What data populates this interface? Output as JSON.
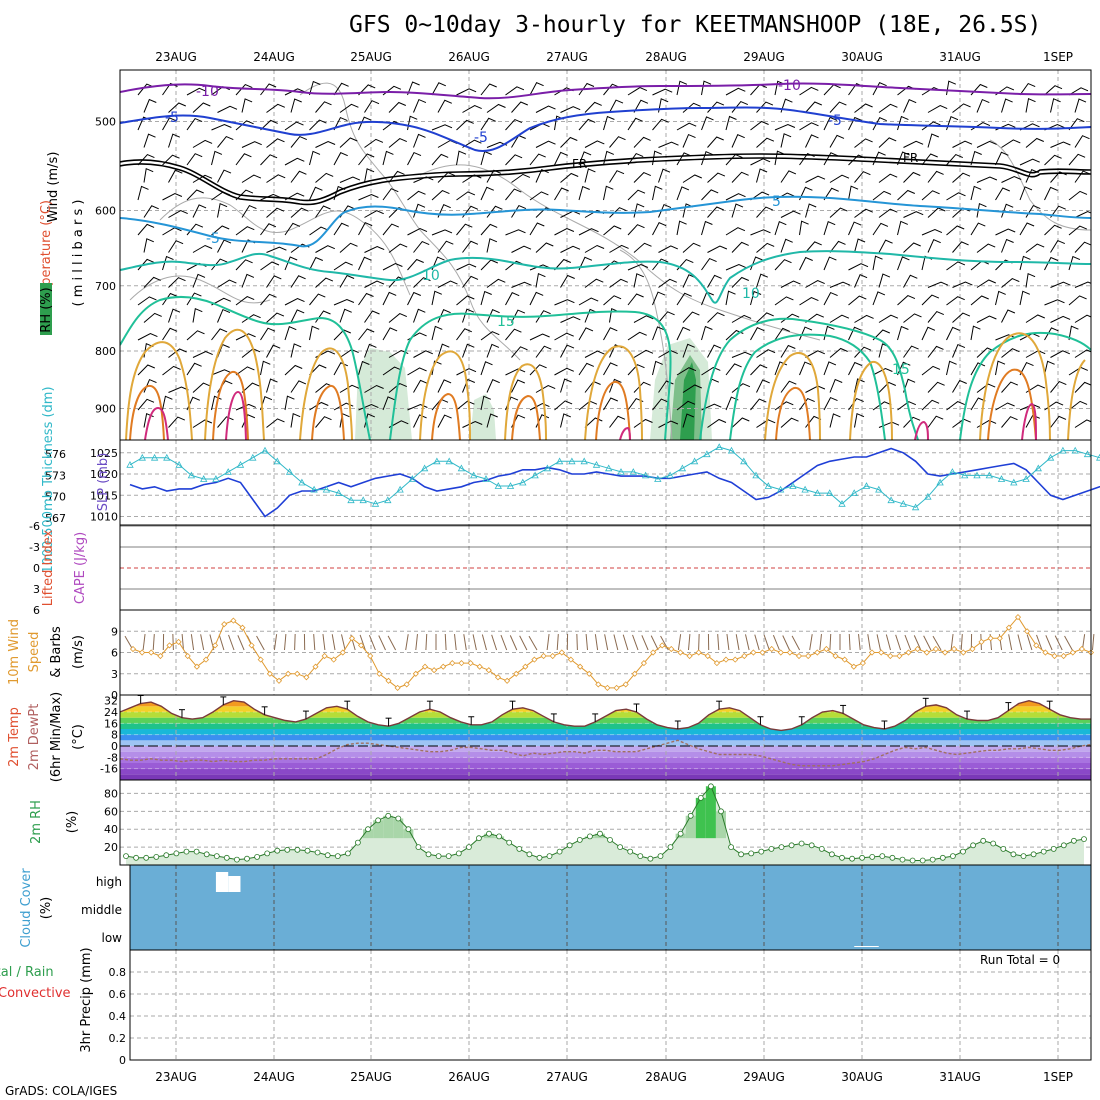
{
  "title": "GFS 0~10day 3-hourly for KEETMANSHOOP (18E, 26.5S)",
  "footer": "GrADS: COLA/IGES",
  "dates": [
    "23AUG",
    "24AUG",
    "25AUG",
    "26AUG",
    "27AUG",
    "28AUG",
    "29AUG",
    "30AUG",
    "31AUG",
    "1SEP"
  ],
  "colors": {
    "grid": "#aaaaaa",
    "rh_fill": "#2e9e4e",
    "cloud": "#6aaed6",
    "slp": "#1f3fd6",
    "thick": "#30b8c8",
    "wind": "#e09a30",
    "precip_bg": "#ffffff"
  },
  "labels": {
    "upper_wind": "Wind (m/s)",
    "upper_temp": "Temperature (°C)",
    "upper_pres": "( m i l l i b a r s )",
    "upper_rh": "RH (%)",
    "slp_label": "SLP (mb)",
    "thick_label": "1000-500mb Thickness (dm)",
    "li_label": "Lifted Index",
    "cape_label": "CAPE (J/kg)",
    "wind10_a": "10m Wind",
    "wind10_b": "Speed",
    "wind10_c": "& Barbs",
    "wind10_unit": "(m/s)",
    "temp_a": "2m Temp",
    "temp_b": "2m DewPt",
    "temp_c": "(6hr Min/Max)",
    "temp_unit": "(°C)",
    "rh2_label": "2m RH",
    "rh2_unit": "(%)",
    "cloud_label": "Cloud Cover",
    "cloud_unit": "(%)",
    "cloud_high": "high",
    "cloud_middle": "middle",
    "cloud_low": "low",
    "precip_a": "Total / Rain",
    "precip_b": "Convective",
    "precip_c": "3hr Precip (mm)",
    "run_total": "Run Total = 0"
  },
  "contour_labels": {
    "m10a": "-10",
    "m10b": "-10",
    "m5a": "-5",
    "m5b": "-5",
    "m5c": "-5",
    "fr1": "FR",
    "fr2": "FR",
    "p5a": "5",
    "m5d": "-5",
    "p10a": "10",
    "p10b": "10",
    "p15a": "15",
    "p15b": "15"
  },
  "chart_data": [
    {
      "type": "line",
      "name": "upper-air cross section",
      "y_axis_ticks": [
        500,
        600,
        700,
        800,
        900
      ],
      "ylim": [
        1000,
        450
      ],
      "y_log": true,
      "isotherm_labels": [
        -10,
        -5,
        5,
        10,
        15
      ],
      "freezing_level": "FR"
    },
    {
      "type": "line",
      "series": [
        {
          "name": "SLP (mb)",
          "values": [
            1017.5,
            1016.5,
            1017,
            1016,
            1016.5,
            1016.5,
            1017.5,
            1018,
            1019,
            1018,
            1014,
            1010,
            1012,
            1015,
            1016,
            1016,
            1017,
            1018,
            1017,
            1018,
            1019,
            1019.5,
            1020,
            1019,
            1017,
            1016,
            1016.5,
            1017,
            1018,
            1018.5,
            1019.5,
            1020,
            1021,
            1021,
            1021.5,
            1021,
            1020,
            1020,
            1020.5,
            1020,
            1019.5,
            1019.5,
            1019.5,
            1019,
            1019,
            1019.5,
            1020,
            1020.5,
            1019,
            1018,
            1016,
            1014,
            1014.5,
            1016,
            1018,
            1020,
            1022,
            1023,
            1023.5,
            1024,
            1024,
            1025,
            1026,
            1025,
            1023,
            1020,
            1019.5,
            1020,
            1020.5,
            1021,
            1021.5,
            1022,
            1022.5,
            1021,
            1018,
            1015,
            1014,
            1015,
            1016,
            1017,
            1018,
            1018,
            1019,
            1018,
            1016,
            1016,
            1016.5,
            1018,
            1019,
            1020,
            1021,
            1023
          ]
        },
        {
          "name": "1000-500mb Thickness (dm)",
          "values": [
            574.5,
            575.5,
            575.5,
            575.5,
            574.5,
            573,
            572.5,
            572.5,
            573.5,
            574.5,
            575.5,
            576.5,
            575,
            573.5,
            572,
            571,
            571,
            570.5,
            569.5,
            569.5,
            569,
            569.5,
            571,
            572.5,
            574,
            575,
            575,
            574,
            573,
            572.5,
            571.5,
            571.5,
            572,
            573,
            574,
            575,
            575,
            575,
            574.5,
            574,
            573.5,
            573.5,
            573,
            572.5,
            573,
            574,
            575,
            576,
            577,
            576.5,
            575,
            573,
            571.5,
            571,
            571.5,
            571,
            570.5,
            570.5,
            569,
            570.5,
            571.5,
            571,
            569.5,
            569,
            568.5,
            570,
            572,
            573.5,
            573,
            573,
            573,
            572.5,
            572,
            572.5,
            574,
            575.5,
            576.5,
            576.5,
            576,
            575.5,
            575,
            575,
            575,
            575.5,
            576,
            576.5,
            577,
            576,
            575.5,
            574.5,
            574,
            574
          ]
        }
      ],
      "ylim_slp": [
        1008,
        1028
      ],
      "ylim_thick": [
        566,
        578
      ],
      "slp_ticks": [
        1010,
        1015,
        1020,
        1025
      ],
      "thick_ticks": [
        567,
        570,
        573,
        576
      ]
    },
    {
      "type": "line",
      "series": [
        {
          "name": "Lifted Index",
          "values": []
        },
        {
          "name": "CAPE (J/kg)",
          "values": []
        }
      ],
      "y_ticks": [
        -6,
        -3,
        0,
        3,
        6
      ],
      "ylim": [
        6,
        -6
      ]
    },
    {
      "type": "line",
      "series": [
        {
          "name": "10m Wind Speed (m/s)",
          "values": [
            6.5,
            6,
            6,
            5.5,
            7,
            7.5,
            5.5,
            4,
            5,
            7,
            10,
            10.5,
            9.5,
            7,
            5,
            3,
            2,
            3,
            3,
            2.5,
            4,
            5.5,
            5,
            6,
            8,
            7,
            5.5,
            3,
            2,
            1,
            1.5,
            3,
            4,
            3.5,
            4,
            4.5,
            4.5,
            4.5,
            4,
            3.5,
            2.5,
            2,
            3,
            4,
            5,
            5.5,
            5.5,
            6,
            5,
            4,
            3,
            1.5,
            1,
            1,
            1.5,
            3,
            4.5,
            6,
            7,
            6.5,
            6,
            5.5,
            6,
            5.5,
            4.5,
            5,
            5,
            5.5,
            6,
            6,
            6.5,
            6,
            6,
            5.5,
            5.5,
            6,
            6.5,
            5.5,
            5,
            4,
            4.5,
            6,
            6,
            5.5,
            5.5,
            6,
            6.5,
            6,
            6.5,
            6,
            6.5,
            6,
            6.5,
            7.5,
            8,
            8,
            9.5,
            11,
            9,
            7,
            6,
            5.5,
            5.5,
            6,
            6.5,
            6
          ]
        }
      ],
      "y_ticks": [
        0,
        3,
        6,
        9
      ],
      "ylim": [
        0,
        12
      ]
    },
    {
      "type": "area",
      "series": [
        {
          "name": "2m Temp (°C)",
          "values": [
            24,
            27,
            30,
            31,
            28,
            23,
            20,
            19,
            20,
            24,
            29,
            32,
            31,
            26,
            22,
            20,
            18,
            17,
            19,
            23,
            27,
            28,
            26,
            21,
            17,
            15,
            14,
            16,
            20,
            24,
            26,
            24,
            20,
            17,
            15,
            15,
            17,
            22,
            26,
            27,
            25,
            21,
            17,
            15,
            14,
            14,
            17,
            21,
            25,
            26,
            24,
            19,
            15,
            13,
            12,
            13,
            16,
            22,
            26,
            27,
            25,
            20,
            15,
            12,
            11,
            12,
            15,
            20,
            24,
            25,
            23,
            19,
            15,
            13,
            12,
            14,
            18,
            24,
            28,
            29,
            27,
            22,
            19,
            18,
            18,
            20,
            25,
            30,
            32,
            30,
            26,
            22,
            20,
            19,
            19
          ]
        },
        {
          "name": "2m DewPt (°C)",
          "values": [
            -9,
            -10,
            -10,
            -9,
            -10,
            -10,
            -11,
            -10,
            -10,
            -11,
            -10,
            -11,
            -11,
            -10,
            -10,
            -9,
            -9,
            -9,
            -9,
            -9,
            -6,
            -2,
            1,
            2,
            2,
            1,
            0,
            -1,
            -2,
            -3,
            -4,
            -4,
            -3,
            -1,
            -1,
            -2,
            -3,
            -3,
            -5,
            -7,
            -5,
            -6,
            -5,
            -4,
            -4,
            -5,
            -3,
            -3,
            -4,
            -4,
            -4,
            -2,
            0,
            2,
            4,
            1,
            -2,
            -4,
            -6,
            -6,
            -6,
            -6,
            -7,
            -9,
            -11,
            -13,
            -14,
            -14,
            -14,
            -14,
            -13,
            -12,
            -11,
            -9,
            -6,
            -3,
            -1,
            -2,
            -1,
            -3,
            -5,
            -6,
            -5,
            -4,
            -3,
            -3,
            -2,
            -2,
            -1,
            -2,
            -3,
            -3,
            -2,
            0,
            1
          ]
        }
      ],
      "y_ticks": [
        -16,
        -8,
        0,
        8,
        16,
        24,
        32
      ],
      "ylim": [
        -24,
        36
      ]
    },
    {
      "type": "area",
      "series": [
        {
          "name": "2m RH (%)",
          "values": [
            10,
            8,
            8,
            9,
            11,
            13,
            15,
            15,
            12,
            10,
            8,
            6,
            7,
            9,
            13,
            16,
            17,
            17,
            16,
            14,
            11,
            10,
            13,
            25,
            40,
            50,
            55,
            52,
            40,
            20,
            12,
            10,
            10,
            13,
            20,
            30,
            35,
            32,
            25,
            18,
            12,
            8,
            10,
            15,
            22,
            28,
            32,
            35,
            28,
            20,
            15,
            10,
            7,
            10,
            20,
            35,
            55,
            75,
            88,
            60,
            20,
            12,
            13,
            15,
            18,
            20,
            22,
            24,
            22,
            18,
            12,
            8,
            7,
            8,
            9,
            10,
            8,
            6,
            5,
            5,
            6,
            8,
            10,
            15,
            22,
            27,
            24,
            18,
            12,
            10,
            12,
            15,
            18,
            22,
            27,
            29
          ]
        }
      ],
      "y_ticks": [
        20,
        40,
        60,
        80
      ],
      "ylim": [
        0,
        95
      ]
    },
    {
      "type": "bar",
      "series": [
        {
          "name": "high",
          "values": [
            0,
            0,
            0,
            0,
            0,
            0,
            0,
            25,
            20,
            0,
            0,
            0,
            0,
            0,
            0,
            0,
            0,
            0,
            0,
            0,
            0,
            0,
            0,
            0,
            0,
            0,
            0,
            0,
            0,
            0,
            0,
            0,
            0,
            0,
            0,
            0,
            0,
            0,
            0,
            0,
            0,
            0,
            0,
            0,
            0,
            0,
            0,
            0,
            0,
            0,
            0,
            0,
            0,
            0,
            0,
            0,
            0,
            0,
            0,
            0,
            0,
            0,
            0,
            0,
            0,
            0,
            0,
            0,
            0,
            0,
            0,
            0,
            0,
            0,
            0,
            0,
            0,
            0,
            0,
            0,
            0,
            0,
            0,
            0,
            0,
            0,
            0,
            0,
            0,
            0,
            0,
            0,
            0,
            0,
            0
          ]
        },
        {
          "name": "middle",
          "values": []
        },
        {
          "name": "low",
          "values": [
            0,
            0,
            0,
            0,
            0,
            0,
            0,
            0,
            0,
            0,
            0,
            0,
            0,
            0,
            0,
            0,
            0,
            0,
            0,
            0,
            0,
            0,
            0,
            0,
            0,
            0,
            0,
            0,
            0,
            0,
            0,
            0,
            0,
            0,
            0,
            0,
            0,
            0,
            0,
            0,
            0,
            0,
            0,
            0,
            0,
            0,
            0,
            0,
            0,
            0,
            0,
            0,
            0,
            0,
            0,
            0,
            0,
            0,
            0,
            5,
            5,
            0,
            0,
            0,
            0,
            0,
            0,
            0,
            0,
            0,
            0,
            0,
            0,
            0,
            0,
            0,
            0,
            0,
            0,
            0,
            0,
            0,
            0,
            0,
            0,
            0,
            0,
            0,
            0,
            0,
            0,
            0,
            0,
            0,
            0
          ]
        }
      ]
    },
    {
      "type": "bar",
      "series": [
        {
          "name": "3hr Precip (mm)",
          "values": []
        }
      ],
      "y_ticks": [
        0,
        0.2,
        0.4,
        0.6,
        0.8
      ],
      "ylim": [
        0,
        1
      ]
    }
  ]
}
